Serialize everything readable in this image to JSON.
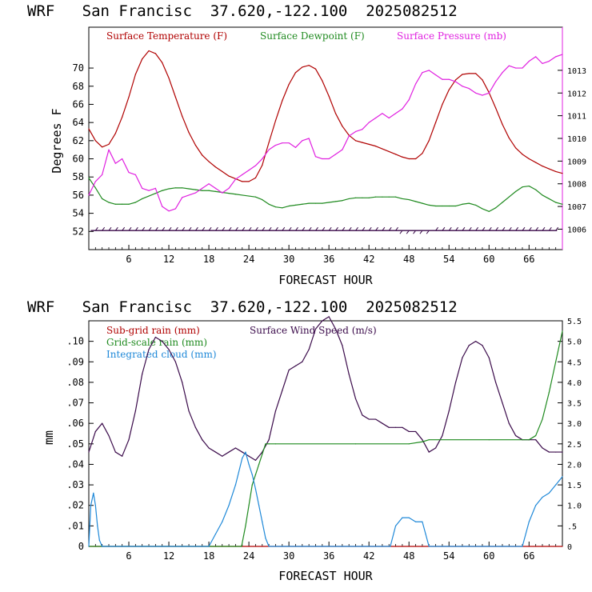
{
  "colors": {
    "temperature": "#b00000",
    "dewpoint": "#1f8a1f",
    "pressure": "#e020e0",
    "subgrid_rain": "#b00000",
    "wind_speed": "#3a0a4a",
    "gridscale_rain": "#1f8a1f",
    "cloud": "#1e88d8",
    "wind_barbs": "#3a0a4a"
  },
  "chart_data": [
    {
      "type": "line",
      "title": "WRF   San Francisc  37.620,-122.100  2025082512",
      "xlabel": "FORECAST HOUR",
      "ylabel": "Degrees F",
      "ylabel_right": "",
      "xlim": [
        0,
        71
      ],
      "ylim": [
        50,
        74.5
      ],
      "ylim_right": [
        1005.1,
        1014.9
      ],
      "x_ticks": [
        6,
        12,
        18,
        24,
        30,
        36,
        42,
        48,
        54,
        60,
        66
      ],
      "x_tick_labels": [
        "6",
        "12",
        "18",
        "24",
        "30",
        "36",
        "42",
        "48",
        "54",
        "60",
        "66"
      ],
      "y_ticks": [
        52,
        54,
        56,
        58,
        60,
        62,
        64,
        66,
        68,
        70
      ],
      "y_tick_labels": [
        "52",
        "54",
        "56",
        "58",
        "60",
        "62",
        "64",
        "66",
        "68",
        "70"
      ],
      "y_ticks_right": [
        1006,
        1007,
        1008,
        1009,
        1010,
        1011,
        1012,
        1013
      ],
      "y_tick_labels_right": [
        "1006",
        "1007",
        "1008",
        "1009",
        "1010",
        "1011",
        "1012",
        "1013"
      ],
      "legend_placement": "top",
      "grid": false,
      "series": [
        {
          "name": "Surface Temperature (F)",
          "color_key": "temperature",
          "axis": "left",
          "x": [
            0,
            1,
            2,
            3,
            4,
            5,
            6,
            7,
            8,
            9,
            10,
            11,
            12,
            13,
            14,
            15,
            16,
            17,
            18,
            19,
            20,
            21,
            22,
            23,
            24,
            25,
            26,
            27,
            28,
            29,
            30,
            31,
            32,
            33,
            34,
            35,
            36,
            37,
            38,
            39,
            40,
            41,
            42,
            43,
            44,
            45,
            46,
            47,
            48,
            49,
            50,
            51,
            52,
            53,
            54,
            55,
            56,
            57,
            58,
            59,
            60,
            61,
            62,
            63,
            64,
            65,
            66,
            67,
            68,
            69,
            70,
            71
          ],
          "y": [
            63.3,
            62.0,
            61.3,
            61.6,
            62.8,
            64.6,
            66.8,
            69.3,
            71.0,
            71.9,
            71.6,
            70.6,
            68.9,
            66.8,
            64.7,
            62.9,
            61.5,
            60.4,
            59.7,
            59.1,
            58.6,
            58.1,
            57.8,
            57.5,
            57.5,
            57.9,
            59.3,
            61.8,
            64.2,
            66.4,
            68.2,
            69.5,
            70.1,
            70.3,
            69.9,
            68.6,
            66.9,
            65.0,
            63.6,
            62.6,
            62.0,
            61.8,
            61.6,
            61.4,
            61.1,
            60.8,
            60.5,
            60.2,
            60.0,
            60.0,
            60.6,
            62.0,
            64.0,
            66.0,
            67.6,
            68.7,
            69.3,
            69.4,
            69.4,
            68.7,
            67.3,
            65.6,
            63.8,
            62.3,
            61.2,
            60.5,
            60.0,
            59.6,
            59.2,
            58.9,
            58.6,
            58.4
          ]
        },
        {
          "name": "Surface Dewpoint (F)",
          "color_key": "dewpoint",
          "axis": "left",
          "x": [
            0,
            1,
            2,
            3,
            4,
            5,
            6,
            7,
            8,
            9,
            10,
            11,
            12,
            13,
            14,
            15,
            16,
            17,
            18,
            19,
            20,
            21,
            22,
            23,
            24,
            25,
            26,
            27,
            28,
            29,
            30,
            31,
            32,
            33,
            34,
            35,
            36,
            37,
            38,
            39,
            40,
            41,
            42,
            43,
            44,
            45,
            46,
            47,
            48,
            49,
            50,
            51,
            52,
            53,
            54,
            55,
            56,
            57,
            58,
            59,
            60,
            61,
            62,
            63,
            64,
            65,
            66,
            67,
            68,
            69,
            70,
            71
          ],
          "y": [
            57.9,
            56.8,
            55.6,
            55.2,
            55.0,
            55.0,
            55.0,
            55.2,
            55.6,
            55.9,
            56.2,
            56.5,
            56.7,
            56.8,
            56.8,
            56.7,
            56.6,
            56.5,
            56.5,
            56.4,
            56.3,
            56.2,
            56.1,
            56.0,
            55.9,
            55.8,
            55.5,
            55.0,
            54.7,
            54.6,
            54.8,
            54.9,
            55.0,
            55.1,
            55.1,
            55.1,
            55.2,
            55.3,
            55.4,
            55.6,
            55.7,
            55.7,
            55.7,
            55.8,
            55.8,
            55.8,
            55.8,
            55.6,
            55.5,
            55.3,
            55.1,
            54.9,
            54.8,
            54.8,
            54.8,
            54.8,
            55.0,
            55.1,
            54.9,
            54.5,
            54.2,
            54.6,
            55.2,
            55.8,
            56.4,
            56.9,
            57.0,
            56.6,
            56.0,
            55.6,
            55.2,
            55.0
          ]
        },
        {
          "name": "Surface Pressure (mb)",
          "color_key": "pressure",
          "axis": "right",
          "x": [
            0,
            1,
            2,
            3,
            4,
            5,
            6,
            7,
            8,
            9,
            10,
            11,
            12,
            13,
            14,
            15,
            16,
            17,
            18,
            19,
            20,
            21,
            22,
            23,
            24,
            25,
            26,
            27,
            28,
            29,
            30,
            31,
            32,
            33,
            34,
            35,
            36,
            37,
            38,
            39,
            40,
            41,
            42,
            43,
            44,
            45,
            46,
            47,
            48,
            49,
            50,
            51,
            52,
            53,
            54,
            55,
            56,
            57,
            58,
            59,
            60,
            61,
            62,
            63,
            64,
            65,
            66,
            67,
            68,
            69,
            70,
            71
          ],
          "y": [
            1007.5,
            1008.1,
            1008.4,
            1009.5,
            1008.9,
            1009.1,
            1008.5,
            1008.4,
            1007.8,
            1007.7,
            1007.8,
            1007.0,
            1006.8,
            1006.9,
            1007.4,
            1007.5,
            1007.6,
            1007.8,
            1008.0,
            1007.8,
            1007.6,
            1007.8,
            1008.2,
            1008.4,
            1008.6,
            1008.8,
            1009.1,
            1009.5,
            1009.7,
            1009.8,
            1009.8,
            1009.6,
            1009.9,
            1010.0,
            1009.2,
            1009.1,
            1009.1,
            1009.3,
            1009.5,
            1010.1,
            1010.3,
            1010.4,
            1010.7,
            1010.9,
            1011.1,
            1010.9,
            1011.1,
            1011.3,
            1011.7,
            1012.4,
            1012.9,
            1013.0,
            1012.8,
            1012.6,
            1012.6,
            1012.5,
            1012.3,
            1012.2,
            1012.0,
            1011.9,
            1012.0,
            1012.5,
            1012.9,
            1013.2,
            1013.1,
            1013.1,
            1013.4,
            1013.6,
            1013.3,
            1013.4,
            1013.6,
            1013.7
          ]
        }
      ],
      "wind_barbs": {
        "y_level": 52.1,
        "x_step": 1,
        "start": 0,
        "end": 71
      }
    },
    {
      "type": "line",
      "title": "WRF   San Francisc  37.620,-122.100  2025082512",
      "xlabel": "FORECAST HOUR",
      "ylabel": "mm",
      "xlim": [
        0,
        71
      ],
      "ylim": [
        0,
        0.11
      ],
      "ylim_right": [
        0,
        5.5
      ],
      "x_ticks": [
        6,
        12,
        18,
        24,
        30,
        36,
        42,
        48,
        54,
        60,
        66
      ],
      "x_tick_labels": [
        "6",
        "12",
        "18",
        "24",
        "30",
        "36",
        "42",
        "48",
        "54",
        "60",
        "66"
      ],
      "y_ticks": [
        0,
        0.01,
        0.02,
        0.03,
        0.04,
        0.05,
        0.06,
        0.07,
        0.08,
        0.09,
        0.1
      ],
      "y_tick_labels": [
        "0",
        ".01",
        ".02",
        ".03",
        ".04",
        ".05",
        ".06",
        ".07",
        ".08",
        ".09",
        ".10"
      ],
      "y_ticks_right": [
        0,
        0.5,
        1.0,
        1.5,
        2.0,
        2.5,
        3.0,
        3.5,
        4.0,
        4.5,
        5.0,
        5.5
      ],
      "y_tick_labels_right": [
        "0",
        ".5",
        "1.0",
        "1.5",
        "2.0",
        "2.5",
        "3.0",
        "3.5",
        "4.0",
        "4.5",
        "5.0",
        "5.5"
      ],
      "legend_placement": "top-left",
      "grid": false,
      "series": [
        {
          "name": "Sub-grid rain (mm)",
          "color_key": "subgrid_rain",
          "axis": "left",
          "x": [
            0,
            71
          ],
          "y": [
            0,
            0
          ]
        },
        {
          "name": "Surface Wind Speed (m/s)",
          "color_key": "wind_speed",
          "axis": "right",
          "x": [
            0,
            1,
            2,
            3,
            4,
            5,
            6,
            7,
            8,
            9,
            10,
            11,
            12,
            13,
            14,
            15,
            16,
            17,
            18,
            19,
            20,
            21,
            22,
            23,
            24,
            25,
            26,
            27,
            28,
            29,
            30,
            31,
            32,
            33,
            34,
            35,
            36,
            37,
            38,
            39,
            40,
            41,
            42,
            43,
            44,
            45,
            46,
            47,
            48,
            49,
            50,
            51,
            52,
            53,
            54,
            55,
            56,
            57,
            58,
            59,
            60,
            61,
            62,
            63,
            64,
            65,
            66,
            67,
            68,
            69,
            70,
            71
          ],
          "y": [
            2.3,
            2.8,
            3.0,
            2.7,
            2.3,
            2.2,
            2.6,
            3.3,
            4.2,
            4.8,
            5.1,
            5.0,
            4.8,
            4.5,
            4.0,
            3.3,
            2.9,
            2.6,
            2.4,
            2.3,
            2.2,
            2.3,
            2.4,
            2.3,
            2.2,
            2.1,
            2.3,
            2.6,
            3.3,
            3.8,
            4.3,
            4.4,
            4.5,
            4.8,
            5.3,
            5.5,
            5.6,
            5.3,
            4.9,
            4.2,
            3.6,
            3.2,
            3.1,
            3.1,
            3.0,
            2.9,
            2.9,
            2.9,
            2.8,
            2.8,
            2.6,
            2.3,
            2.4,
            2.7,
            3.3,
            4.0,
            4.6,
            4.9,
            5.0,
            4.9,
            4.6,
            4.0,
            3.5,
            3.0,
            2.7,
            2.6,
            2.6,
            2.6,
            2.4,
            2.3,
            2.3,
            2.3
          ]
        },
        {
          "name": "Grid-scale rain (mm)",
          "color_key": "gridscale_rain",
          "axis": "left",
          "x": [
            0,
            22.9,
            23.5,
            24.0,
            24.5,
            25.0,
            25.5,
            26.0,
            26.5,
            27.0,
            28.0,
            40.0,
            48.0,
            50.0,
            51.0,
            60.0,
            66.0,
            67.0,
            68.0,
            69.0,
            70.0,
            71.0
          ],
          "y": [
            0,
            0,
            0.01,
            0.02,
            0.03,
            0.035,
            0.04,
            0.045,
            0.05,
            0.05,
            0.05,
            0.05,
            0.05,
            0.051,
            0.052,
            0.052,
            0.052,
            0.054,
            0.062,
            0.075,
            0.09,
            0.105
          ]
        },
        {
          "name": "Integrated cloud (mm)",
          "color_key": "cloud",
          "axis": "left",
          "x": [
            0,
            0.3,
            0.7,
            1.0,
            1.3,
            1.6,
            2.0,
            18.0,
            19.0,
            20.0,
            21.0,
            22.0,
            23.0,
            23.5,
            24.0,
            24.5,
            25.0,
            25.5,
            26.0,
            26.5,
            27.0,
            45.2,
            46.0,
            47.0,
            48.0,
            49.0,
            50.0,
            50.5,
            51.0,
            65.0,
            66.0,
            67.0,
            68.0,
            69.0,
            70.0,
            70.5,
            71.0
          ],
          "y": [
            0,
            0.02,
            0.026,
            0.02,
            0.01,
            0.003,
            0,
            0,
            0.006,
            0.012,
            0.02,
            0.03,
            0.043,
            0.046,
            0.04,
            0.035,
            0.028,
            0.02,
            0.012,
            0.004,
            0,
            0,
            0.01,
            0.014,
            0.014,
            0.012,
            0.012,
            0.006,
            0,
            0,
            0.012,
            0.02,
            0.024,
            0.026,
            0.03,
            0.032,
            0.034
          ]
        }
      ]
    }
  ]
}
